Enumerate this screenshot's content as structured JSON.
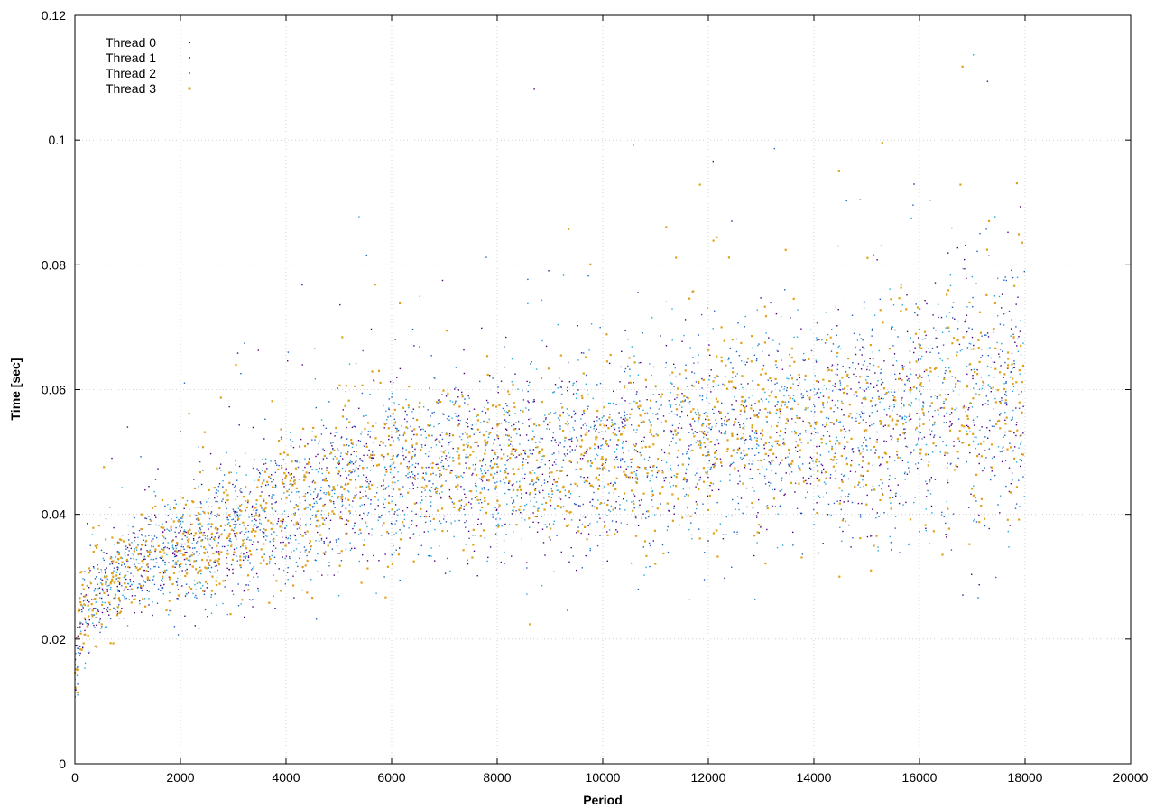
{
  "chart_data": {
    "type": "scatter",
    "title": "",
    "xlabel": "Period",
    "ylabel": "Time [sec]",
    "xlim": [
      0,
      20000
    ],
    "ylim": [
      0,
      0.12
    ],
    "x_ticks": [
      "0",
      "2000",
      "4000",
      "6000",
      "8000",
      "10000",
      "12000",
      "14000",
      "16000",
      "18000",
      "20000"
    ],
    "y_ticks": [
      "0",
      "0.02",
      "0.04",
      "0.06",
      "0.08",
      "0.1",
      "0.12"
    ],
    "grid": true,
    "legend_position": "top-left",
    "series": [
      {
        "name": "Thread 0",
        "color": "#4b0082"
      },
      {
        "name": "Thread 1",
        "color": "#1f5fbf"
      },
      {
        "name": "Thread 2",
        "color": "#25a6d9"
      },
      {
        "name": "Thread 3",
        "color": "#e0a21b"
      }
    ],
    "points_per_series": 18000,
    "trend": {
      "x": [
        0,
        100,
        300,
        600,
        1000,
        1500,
        2000,
        3000,
        4000,
        4800,
        5000,
        6000,
        8000,
        10000,
        12000,
        14000,
        16000,
        17000,
        18000
      ],
      "mean": [
        0.014,
        0.022,
        0.026,
        0.029,
        0.031,
        0.033,
        0.034,
        0.037,
        0.04,
        0.042,
        0.045,
        0.046,
        0.048,
        0.049,
        0.052,
        0.054,
        0.056,
        0.058,
        0.058
      ],
      "spread": [
        0.003,
        0.004,
        0.004,
        0.004,
        0.004,
        0.0045,
        0.005,
        0.0055,
        0.006,
        0.006,
        0.0065,
        0.007,
        0.0075,
        0.008,
        0.0085,
        0.009,
        0.0095,
        0.0105,
        0.011
      ]
    }
  }
}
